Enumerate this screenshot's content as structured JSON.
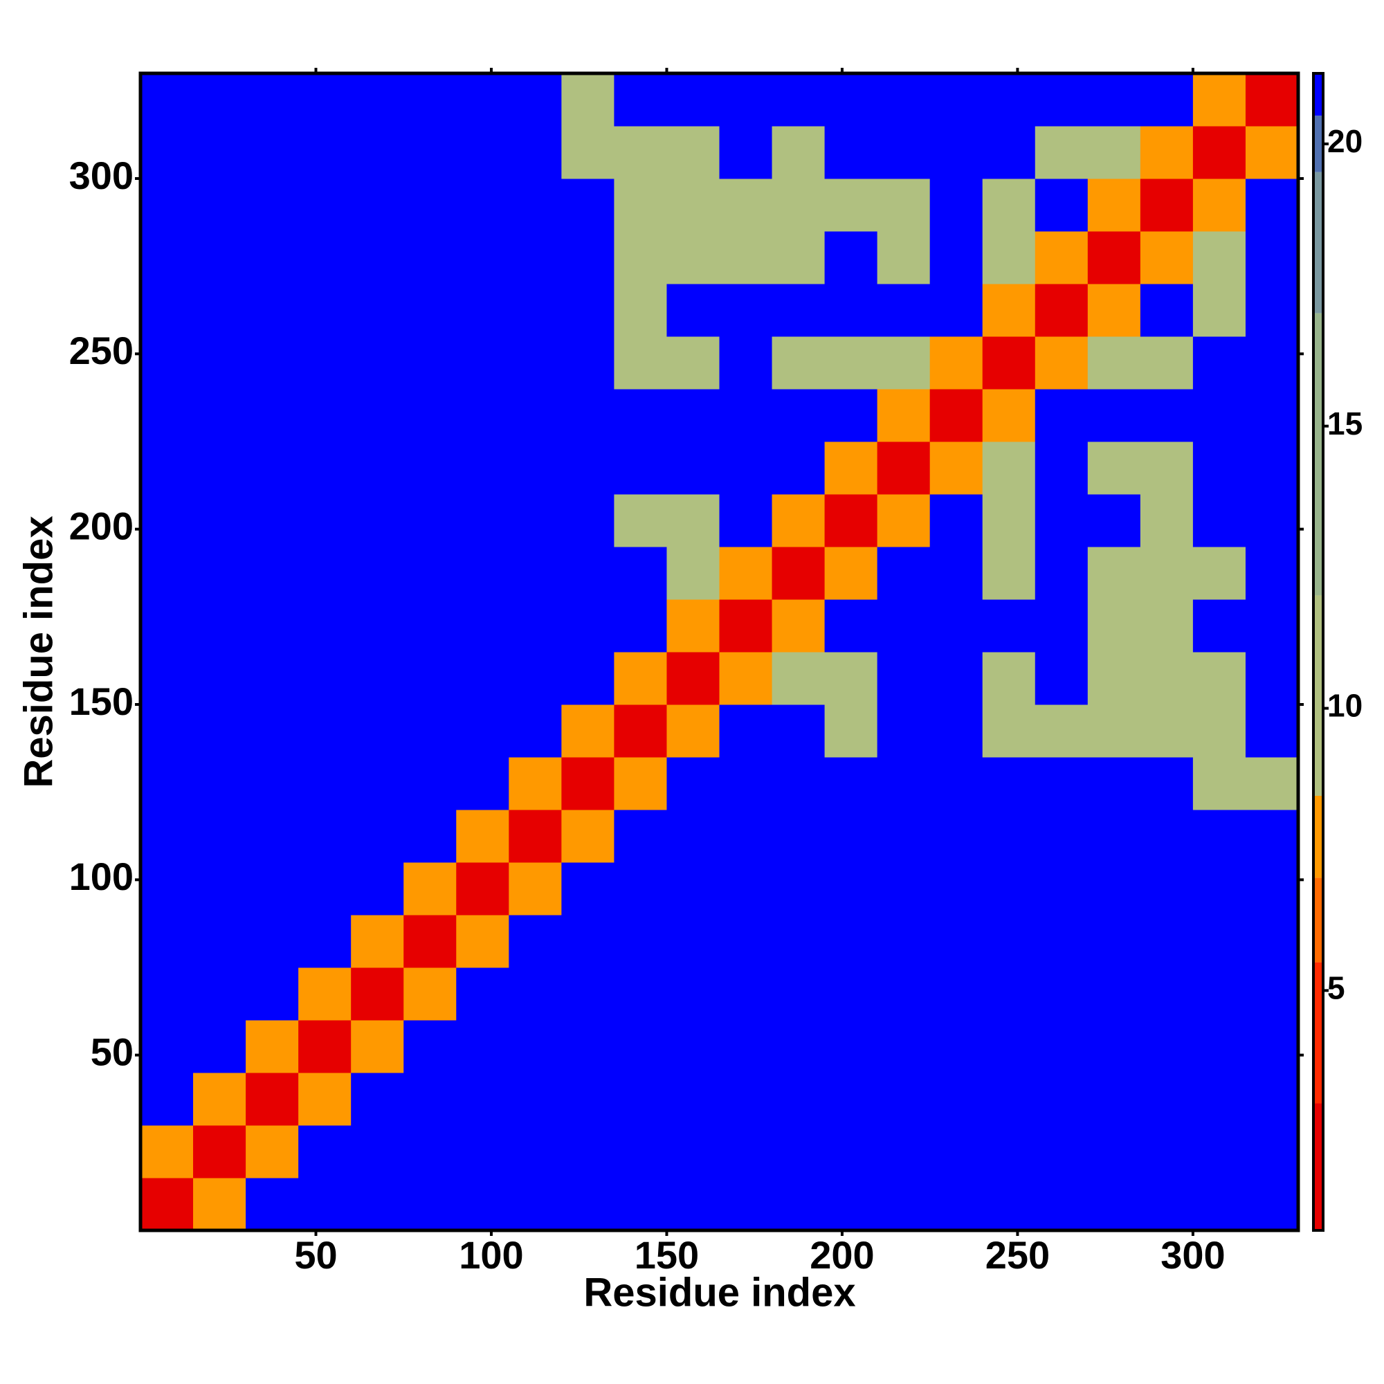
{
  "chart_data": {
    "type": "heatmap",
    "xlabel": "Residue index",
    "ylabel": "Residue index",
    "xlim": [
      0,
      330
    ],
    "ylim": [
      0,
      330
    ],
    "xticks": [
      50,
      100,
      150,
      200,
      250,
      300
    ],
    "yticks": [
      50,
      100,
      150,
      200,
      250,
      300
    ],
    "xbins": [
      0,
      15,
      30,
      45,
      60,
      75,
      90,
      105,
      120,
      135,
      150,
      165,
      180,
      195,
      210,
      225,
      240,
      255,
      270,
      285,
      300,
      315,
      330
    ],
    "ybins": [
      0,
      15,
      30,
      45,
      60,
      75,
      90,
      105,
      120,
      135,
      150,
      165,
      180,
      195,
      210,
      225,
      240,
      255,
      270,
      285,
      300,
      315,
      330
    ],
    "z": [
      [
        2,
        8,
        21,
        21,
        21,
        21,
        21,
        21,
        21,
        21,
        21,
        21,
        21,
        21,
        21,
        21,
        21,
        21,
        21,
        21,
        21,
        21
      ],
      [
        8,
        2,
        8,
        21,
        21,
        21,
        21,
        21,
        21,
        21,
        21,
        21,
        21,
        21,
        21,
        21,
        21,
        21,
        21,
        21,
        21,
        21
      ],
      [
        21,
        8,
        2,
        8,
        21,
        21,
        21,
        21,
        21,
        21,
        21,
        21,
        21,
        21,
        21,
        21,
        21,
        21,
        21,
        21,
        21,
        21
      ],
      [
        21,
        21,
        8,
        2,
        8,
        21,
        21,
        21,
        21,
        21,
        21,
        21,
        21,
        21,
        21,
        21,
        21,
        21,
        21,
        21,
        21,
        21
      ],
      [
        21,
        21,
        21,
        8,
        2,
        8,
        21,
        21,
        21,
        21,
        21,
        21,
        21,
        21,
        21,
        21,
        21,
        21,
        21,
        21,
        21,
        21
      ],
      [
        21,
        21,
        21,
        21,
        8,
        2,
        8,
        21,
        21,
        21,
        21,
        21,
        21,
        21,
        21,
        21,
        21,
        21,
        21,
        21,
        21,
        21
      ],
      [
        21,
        21,
        21,
        21,
        21,
        8,
        2,
        8,
        21,
        21,
        21,
        21,
        21,
        21,
        21,
        21,
        21,
        21,
        21,
        21,
        21,
        21
      ],
      [
        21,
        21,
        21,
        21,
        21,
        21,
        8,
        2,
        8,
        21,
        21,
        21,
        21,
        21,
        21,
        21,
        21,
        21,
        21,
        21,
        21,
        21
      ],
      [
        21,
        21,
        21,
        21,
        21,
        21,
        21,
        8,
        2,
        8,
        21,
        21,
        21,
        21,
        21,
        21,
        21,
        21,
        21,
        21,
        11,
        11
      ],
      [
        21,
        21,
        21,
        21,
        21,
        21,
        21,
        21,
        8,
        2,
        8,
        21,
        21,
        11,
        21,
        21,
        11,
        11,
        11,
        11,
        11,
        21
      ],
      [
        21,
        21,
        21,
        21,
        21,
        21,
        21,
        21,
        21,
        8,
        2,
        8,
        11,
        11,
        21,
        21,
        11,
        21,
        11,
        11,
        11,
        21
      ],
      [
        21,
        21,
        21,
        21,
        21,
        21,
        21,
        21,
        21,
        21,
        8,
        2,
        8,
        21,
        21,
        21,
        21,
        21,
        11,
        11,
        21,
        21
      ],
      [
        21,
        21,
        21,
        21,
        21,
        21,
        21,
        21,
        21,
        21,
        11,
        8,
        2,
        8,
        21,
        21,
        11,
        21,
        11,
        11,
        11,
        21
      ],
      [
        21,
        21,
        21,
        21,
        21,
        21,
        21,
        21,
        21,
        11,
        11,
        21,
        8,
        2,
        8,
        21,
        11,
        21,
        21,
        11,
        21,
        21
      ],
      [
        21,
        21,
        21,
        21,
        21,
        21,
        21,
        21,
        21,
        21,
        21,
        21,
        21,
        8,
        2,
        8,
        11,
        21,
        11,
        11,
        21,
        21
      ],
      [
        21,
        21,
        21,
        21,
        21,
        21,
        21,
        21,
        21,
        21,
        21,
        21,
        21,
        21,
        8,
        2,
        8,
        21,
        21,
        21,
        21,
        21
      ],
      [
        21,
        21,
        21,
        21,
        21,
        21,
        21,
        21,
        21,
        11,
        11,
        21,
        11,
        11,
        11,
        8,
        2,
        8,
        11,
        11,
        21,
        21
      ],
      [
        21,
        21,
        21,
        21,
        21,
        21,
        21,
        21,
        21,
        11,
        21,
        21,
        21,
        21,
        21,
        21,
        8,
        2,
        8,
        21,
        11,
        21
      ],
      [
        21,
        21,
        21,
        21,
        21,
        21,
        21,
        21,
        21,
        11,
        11,
        11,
        11,
        21,
        11,
        21,
        11,
        8,
        2,
        8,
        11,
        21
      ],
      [
        21,
        21,
        21,
        21,
        21,
        21,
        21,
        21,
        21,
        11,
        11,
        11,
        11,
        11,
        11,
        21,
        11,
        21,
        8,
        2,
        8,
        21
      ],
      [
        21,
        21,
        21,
        21,
        21,
        21,
        21,
        21,
        11,
        11,
        11,
        21,
        11,
        21,
        21,
        21,
        21,
        11,
        11,
        8,
        2,
        8
      ],
      [
        21,
        21,
        21,
        21,
        21,
        21,
        21,
        21,
        11,
        21,
        21,
        21,
        21,
        21,
        21,
        21,
        21,
        21,
        21,
        21,
        8,
        2
      ]
    ],
    "zlim": [
      0.75,
      21.25
    ],
    "zticks": [
      5,
      10,
      15,
      20
    ],
    "colormap": [
      [
        0.75,
        "#e60000"
      ],
      [
        3,
        "#ff2a00"
      ],
      [
        5.5,
        "#ff6a00"
      ],
      [
        7,
        "#ff9900"
      ],
      [
        8.45,
        "#b0c080"
      ],
      [
        12,
        "#98b48c"
      ],
      [
        17,
        "#7a98a0"
      ],
      [
        19.5,
        "#5070b0"
      ],
      [
        20.5,
        "#0000ff"
      ]
    ]
  }
}
